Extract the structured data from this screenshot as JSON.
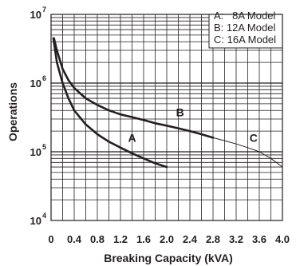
{
  "chart_data": {
    "type": "line",
    "title": "",
    "xlabel": "Breaking Capacity (kVA)",
    "ylabel": "Operations",
    "xlim": [
      0,
      4.0
    ],
    "ylim": [
      10000,
      10000000
    ],
    "y_scale": "log",
    "grid": true,
    "x_ticks": [
      "0",
      "0.4",
      "0.8",
      "1.2",
      "1.6",
      "2.0",
      "2.4",
      "2.8",
      "3.2",
      "3.6",
      "4.0"
    ],
    "y_ticks": [
      {
        "base": "10",
        "exp": "7",
        "value": 10000000
      },
      {
        "base": "10",
        "exp": "6",
        "value": 1000000
      },
      {
        "base": "10",
        "exp": "5",
        "value": 100000
      },
      {
        "base": "10",
        "exp": "4",
        "value": 10000
      }
    ],
    "legend": {
      "position": "top-right",
      "entries": [
        "A:   8A Model",
        "B: 12A Model",
        "C: 16A Model"
      ]
    },
    "series": [
      {
        "label": "A",
        "x": [
          0.04,
          0.1,
          0.2,
          0.3,
          0.4,
          0.6,
          0.8,
          1.0,
          1.2,
          1.4,
          1.6,
          1.8,
          2.0
        ],
        "y": [
          4500000,
          2000000,
          1000000,
          600000,
          400000,
          250000,
          180000,
          140000,
          115000,
          95000,
          80000,
          68000,
          60000
        ]
      },
      {
        "label": "B",
        "x": [
          0.05,
          0.1,
          0.2,
          0.3,
          0.4,
          0.6,
          0.8,
          1.0,
          1.2,
          1.4,
          1.6,
          1.8,
          2.0,
          2.2,
          2.4,
          2.6,
          2.8
        ],
        "y": [
          4500000,
          3000000,
          1600000,
          1100000,
          850000,
          600000,
          480000,
          400000,
          350000,
          320000,
          290000,
          260000,
          240000,
          220000,
          200000,
          180000,
          160000
        ]
      },
      {
        "label": "C",
        "x": [
          2.8,
          3.0,
          3.2,
          3.4,
          3.6,
          3.8,
          4.0
        ],
        "y": [
          160000,
          145000,
          130000,
          115000,
          100000,
          80000,
          60000
        ]
      }
    ],
    "curve_labels": [
      {
        "text": "A",
        "x": 1.4,
        "y": 140000
      },
      {
        "text": "B",
        "x": 2.23,
        "y": 330000
      },
      {
        "text": "C",
        "x": 3.5,
        "y": 140000
      }
    ]
  }
}
